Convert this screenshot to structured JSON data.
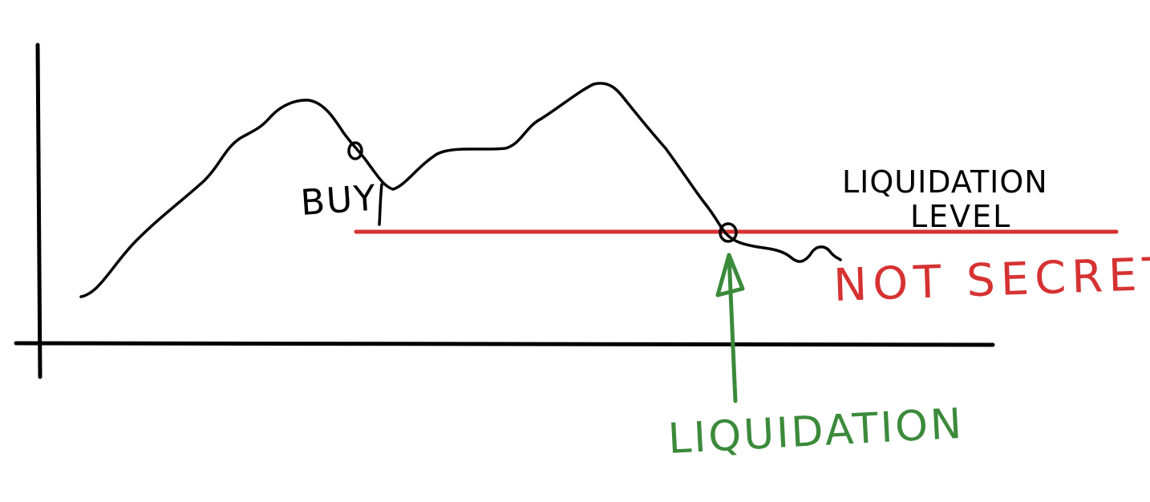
{
  "colors": {
    "ink": "#000000",
    "liquidation_level_line": "#d63232",
    "not_secret_text": "#d63232",
    "liquidation_arrow": "#3b8a3b",
    "liquidation_text": "#3b8a3b",
    "background": "#ffffff"
  },
  "labels": {
    "buy": "BUY",
    "liquidation_level_line1": "LIQUIDATION",
    "liquidation_level_line2": "LEVEL",
    "not_secret": "NOT SECRET",
    "liquidation": "LIQUIDATION"
  },
  "markers": {
    "buy_marker": "circle",
    "liquidation_marker": "circle"
  },
  "arrow": {
    "direction": "up"
  }
}
